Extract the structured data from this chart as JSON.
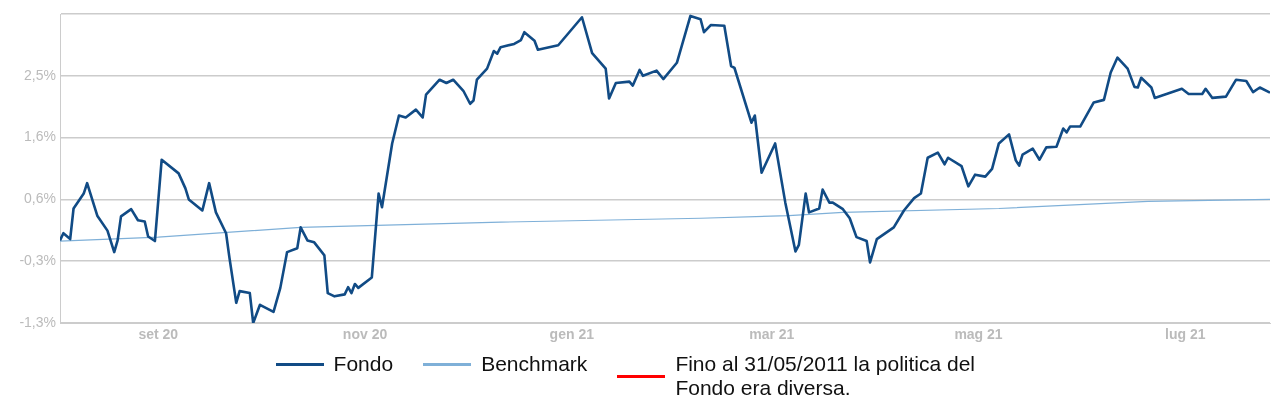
{
  "chart_data": {
    "type": "line",
    "xlim": [
      "2020-08-03",
      "2021-07-26"
    ],
    "xticks": [
      {
        "value": "2020-09-01",
        "label": "set 20"
      },
      {
        "value": "2020-11-01",
        "label": "nov 20"
      },
      {
        "value": "2021-01-01",
        "label": "gen 21"
      },
      {
        "value": "2021-03-01",
        "label": "mar 21"
      },
      {
        "value": "2021-05-01",
        "label": "mag 21"
      },
      {
        "value": "2021-07-01",
        "label": "lug 21"
      }
    ],
    "ylim": [
      -1.3,
      3.45
    ],
    "yticks": [
      {
        "value": -1.3,
        "label": "-1,3%"
      },
      {
        "value": -0.35,
        "label": "-0,3%"
      },
      {
        "value": 0.6,
        "label": "0,6%"
      },
      {
        "value": 1.55,
        "label": "1,6%"
      },
      {
        "value": 2.5,
        "label": "2,5%"
      },
      {
        "value": 3.45,
        "label": null
      }
    ],
    "grid": "y",
    "legend": "bottom",
    "series": [
      {
        "name": "Fondo",
        "color": "#114b85",
        "x": [
          "2020-08-03",
          "2020-08-04",
          "2020-08-06",
          "2020-08-07",
          "2020-08-10",
          "2020-08-11",
          "2020-08-14",
          "2020-08-17",
          "2020-08-19",
          "2020-08-20",
          "2020-08-21",
          "2020-08-24",
          "2020-08-26",
          "2020-08-28",
          "2020-08-29",
          "2020-08-31",
          "2020-09-02",
          "2020-09-07",
          "2020-09-09",
          "2020-09-10",
          "2020-09-14",
          "2020-09-16",
          "2020-09-18",
          "2020-09-21",
          "2020-09-22",
          "2020-09-24",
          "2020-09-25",
          "2020-09-28",
          "2020-09-29",
          "2020-10-01",
          "2020-10-05",
          "2020-10-07",
          "2020-10-09",
          "2020-10-12",
          "2020-10-13",
          "2020-10-15",
          "2020-10-17",
          "2020-10-20",
          "2020-10-21",
          "2020-10-23",
          "2020-10-26",
          "2020-10-27",
          "2020-10-28",
          "2020-10-29",
          "2020-10-30",
          "2020-11-03",
          "2020-11-05",
          "2020-11-06",
          "2020-11-09",
          "2020-11-11",
          "2020-11-13",
          "2020-11-16",
          "2020-11-18",
          "2020-11-19",
          "2020-11-23",
          "2020-11-25",
          "2020-11-27",
          "2020-11-30",
          "2020-12-02",
          "2020-12-03",
          "2020-12-04",
          "2020-12-07",
          "2020-12-09",
          "2020-12-10",
          "2020-12-11",
          "2020-12-15",
          "2020-12-17",
          "2020-12-18",
          "2020-12-21",
          "2020-12-22",
          "2020-12-28",
          "2021-01-04",
          "2021-01-07",
          "2021-01-11",
          "2021-01-12",
          "2021-01-14",
          "2021-01-18",
          "2021-01-19",
          "2021-01-21",
          "2021-01-22",
          "2021-01-26",
          "2021-01-28",
          "2021-02-01",
          "2021-02-05",
          "2021-02-08",
          "2021-02-09",
          "2021-02-11",
          "2021-02-15",
          "2021-02-17",
          "2021-02-18",
          "2021-02-23",
          "2021-02-24",
          "2021-02-26",
          "2021-03-02",
          "2021-03-05",
          "2021-03-08",
          "2021-03-09",
          "2021-03-11",
          "2021-03-12",
          "2021-03-15",
          "2021-03-16",
          "2021-03-18",
          "2021-03-19",
          "2021-03-22",
          "2021-03-24",
          "2021-03-26",
          "2021-03-29",
          "2021-03-30",
          "2021-04-01",
          "2021-04-06",
          "2021-04-09",
          "2021-04-12",
          "2021-04-14",
          "2021-04-16",
          "2021-04-19",
          "2021-04-21",
          "2021-04-22",
          "2021-04-26",
          "2021-04-28",
          "2021-04-30",
          "2021-05-03",
          "2021-05-05",
          "2021-05-07",
          "2021-05-10",
          "2021-05-12",
          "2021-05-13",
          "2021-05-14",
          "2021-05-17",
          "2021-05-19",
          "2021-05-21",
          "2021-05-24",
          "2021-05-26",
          "2021-05-27",
          "2021-05-28",
          "2021-05-31",
          "2021-06-04",
          "2021-06-07",
          "2021-06-09",
          "2021-06-11",
          "2021-06-14",
          "2021-06-16",
          "2021-06-17",
          "2021-06-18",
          "2021-06-21",
          "2021-06-22",
          "2021-06-30",
          "2021-07-02",
          "2021-07-06",
          "2021-07-07",
          "2021-07-09",
          "2021-07-13",
          "2021-07-16",
          "2021-07-19",
          "2021-07-21",
          "2021-07-23",
          "2021-07-26"
        ],
        "values": [
          -0.03,
          0.08,
          -0.01,
          0.46,
          0.69,
          0.85,
          0.35,
          0.12,
          -0.21,
          -0.03,
          0.34,
          0.45,
          0.28,
          0.26,
          0.03,
          -0.04,
          1.21,
          1.0,
          0.77,
          0.6,
          0.43,
          0.85,
          0.4,
          0.08,
          -0.3,
          -0.99,
          -0.81,
          -0.84,
          -1.3,
          -1.02,
          -1.13,
          -0.76,
          -0.21,
          -0.15,
          0.17,
          -0.03,
          -0.06,
          -0.26,
          -0.84,
          -0.89,
          -0.86,
          -0.75,
          -0.84,
          -0.7,
          -0.76,
          -0.6,
          0.69,
          0.48,
          1.46,
          1.89,
          1.86,
          1.98,
          1.86,
          2.21,
          2.44,
          2.39,
          2.44,
          2.27,
          2.07,
          2.12,
          2.44,
          2.61,
          2.88,
          2.84,
          2.94,
          2.99,
          3.05,
          3.17,
          3.04,
          2.9,
          2.97,
          3.4,
          2.85,
          2.61,
          2.15,
          2.39,
          2.41,
          2.35,
          2.59,
          2.5,
          2.58,
          2.45,
          2.7,
          3.42,
          3.37,
          3.17,
          3.28,
          3.27,
          2.65,
          2.62,
          1.78,
          1.89,
          1.01,
          1.46,
          0.55,
          -0.2,
          -0.1,
          0.69,
          0.4,
          0.46,
          0.75,
          0.55,
          0.55,
          0.45,
          0.31,
          0.02,
          -0.04,
          -0.37,
          -0.01,
          0.17,
          0.43,
          0.62,
          0.69,
          1.24,
          1.32,
          1.14,
          1.24,
          1.11,
          0.8,
          0.98,
          0.95,
          1.07,
          1.46,
          1.6,
          1.2,
          1.12,
          1.29,
          1.38,
          1.21,
          1.4,
          1.41,
          1.69,
          1.63,
          1.72,
          1.72,
          2.09,
          2.13,
          2.55,
          2.78,
          2.61,
          2.33,
          2.32,
          2.47,
          2.32,
          2.16,
          2.3,
          2.22,
          2.22,
          2.3,
          2.16,
          2.18,
          2.44,
          2.42,
          2.25,
          2.32,
          2.24
        ]
      },
      {
        "name": "Benchmark",
        "color": "#7fb0d8",
        "x": [
          "2020-08-03",
          "2020-09-01",
          "2020-10-13",
          "2020-12-11",
          "2021-02-08",
          "2021-03-06",
          "2021-03-22",
          "2021-05-07",
          "2021-06-20",
          "2021-07-26"
        ],
        "values": [
          -0.04,
          0.02,
          0.17,
          0.25,
          0.31,
          0.35,
          0.4,
          0.46,
          0.57,
          0.6
        ]
      },
      {
        "name": "Fino al 31/05/2011 la politica del Fondo era diversa.",
        "color": "#ff0000"
      }
    ]
  }
}
